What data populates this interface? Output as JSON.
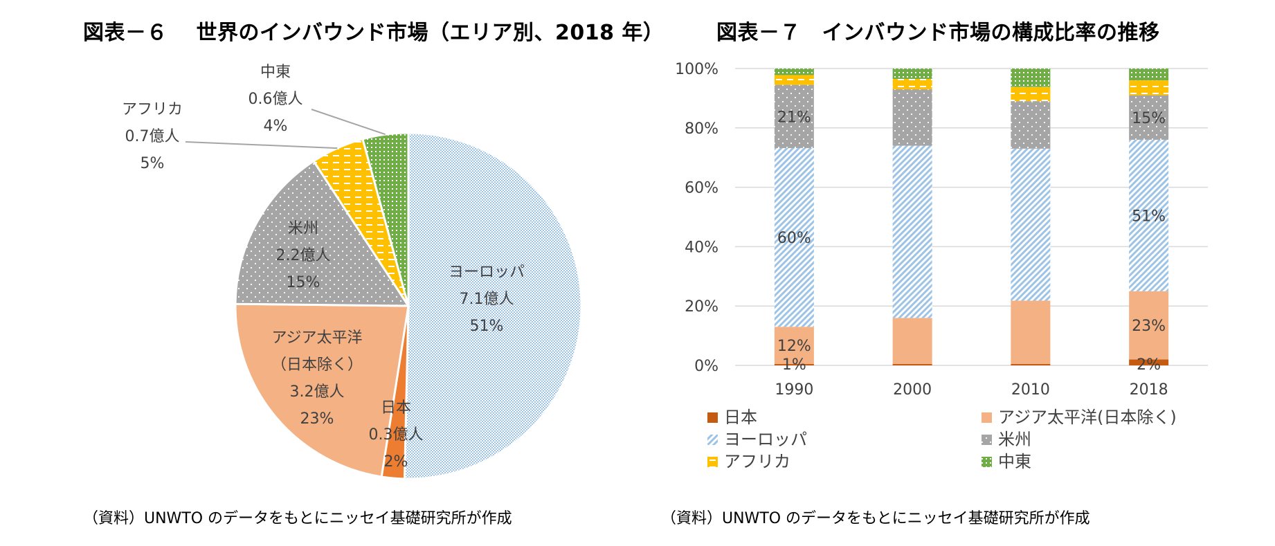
{
  "titles": {
    "left": "図表－６　 世界のインバウンド市場（エリア別、2018 年）",
    "right": "図表－７　インバウンド市場の構成比率の推移"
  },
  "sources": {
    "left": "（資料）UNWTO のデータをもとにニッセイ基礎研究所が作成",
    "right": "（資料）UNWTO のデータをもとにニッセイ基礎研究所が作成"
  },
  "colors": {
    "japan": "#C55A11",
    "japan_pie": "#ED7D31",
    "asia": "#F4B183",
    "europe": "#9DC3E6",
    "americas": "#A5A5A5",
    "africa": "#FFC000",
    "middle_east": "#70AD47"
  },
  "chart_data": [
    {
      "type": "pie",
      "title": "図表－６　 世界のインバウンド市場（エリア別、2018 年）",
      "slices": [
        {
          "key": "europe",
          "name": "ヨーロッパ",
          "value": 7.1,
          "value_label": "7.1億人",
          "percent": 51,
          "percent_label": "51%"
        },
        {
          "key": "japan",
          "name": "日本",
          "value": 0.3,
          "value_label": "0.3億人",
          "percent": 2,
          "percent_label": "2%"
        },
        {
          "key": "asia",
          "name": "アジア太平洋",
          "name2": "（日本除く）",
          "value": 3.2,
          "value_label": "3.2億人",
          "percent": 23,
          "percent_label": "23%"
        },
        {
          "key": "americas",
          "name": "米州",
          "value": 2.2,
          "value_label": "2.2億人",
          "percent": 15,
          "percent_label": "15%"
        },
        {
          "key": "africa",
          "name": "アフリカ",
          "value": 0.7,
          "value_label": "0.7億人",
          "percent": 5,
          "percent_label": "5%"
        },
        {
          "key": "middle_east",
          "name": "中東",
          "value": 0.6,
          "value_label": "0.6億人",
          "percent": 4,
          "percent_label": "4%"
        }
      ]
    },
    {
      "type": "bar",
      "stacked": true,
      "title": "図表－７　インバウンド市場の構成比率の推移",
      "categories": [
        "1990",
        "2000",
        "2010",
        "2018"
      ],
      "ylim": [
        0,
        100
      ],
      "yticks": [
        "0%",
        "20%",
        "40%",
        "60%",
        "80%",
        "100%"
      ],
      "grid": true,
      "legend_position": "bottom",
      "series": [
        {
          "key": "japan",
          "name": "日本",
          "values": [
            0.5,
            0.5,
            0.5,
            2
          ]
        },
        {
          "key": "asia",
          "name": "アジア太平洋(日本除く)",
          "values": [
            12.5,
            15.5,
            21.3,
            23
          ]
        },
        {
          "key": "europe",
          "name": "ヨーロッパ",
          "values": [
            60.2,
            58,
            51.2,
            51
          ]
        },
        {
          "key": "americas",
          "name": "米州",
          "values": [
            21.3,
            19,
            16,
            15
          ]
        },
        {
          "key": "africa",
          "name": "アフリカ",
          "values": [
            3.3,
            3.5,
            4.8,
            5
          ]
        },
        {
          "key": "middle_east",
          "name": "中東",
          "values": [
            2.2,
            3.5,
            6.2,
            4
          ]
        }
      ],
      "data_labels": [
        {
          "cat": 0,
          "series": "japan",
          "text": "1%"
        },
        {
          "cat": 0,
          "series": "asia",
          "text": "12%"
        },
        {
          "cat": 0,
          "series": "europe",
          "text": "60%"
        },
        {
          "cat": 0,
          "series": "americas",
          "text": "21%"
        },
        {
          "cat": 3,
          "series": "japan",
          "text": "2%"
        },
        {
          "cat": 3,
          "series": "asia",
          "text": "23%"
        },
        {
          "cat": 3,
          "series": "europe",
          "text": "51%"
        },
        {
          "cat": 3,
          "series": "americas",
          "text": "15%"
        }
      ]
    }
  ]
}
